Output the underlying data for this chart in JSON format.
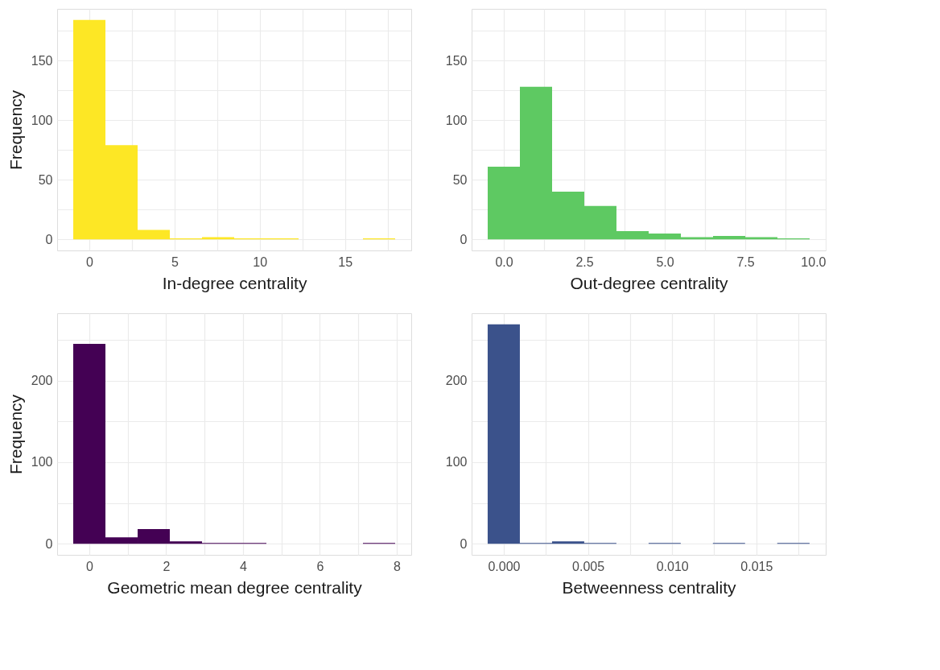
{
  "chart_data": [
    {
      "type": "histogram",
      "color": "#fde725",
      "xlabel": "In-degree centrality",
      "ylabel": "Frequency",
      "grid": true,
      "bins": [
        -0.944,
        0.944,
        2.833,
        4.722,
        6.611,
        8.5,
        10.389,
        12.278,
        14.167,
        16.056,
        17.944
      ],
      "values": [
        184,
        79,
        8,
        1,
        2,
        1,
        1,
        0,
        0,
        1
      ],
      "xlim": [
        -1.89,
        18.89
      ],
      "xticks": [
        0,
        {
          "value": 2.5,
          "label": null
        },
        5,
        {
          "value": 7.5,
          "label": null
        },
        10,
        {
          "value": 12.5,
          "label": null
        },
        15,
        {
          "value": 17.5,
          "label": null
        }
      ],
      "ylim": [
        -9.2,
        193.2
      ],
      "yticks": [
        0,
        {
          "value": 25,
          "label": null
        },
        50,
        {
          "value": 75,
          "label": null
        },
        100,
        {
          "value": 125,
          "label": null
        },
        150,
        {
          "value": 175,
          "label": null
        }
      ]
    },
    {
      "type": "histogram",
      "color": "#5ec962",
      "xlabel": "Out-degree centrality",
      "grid": true,
      "bins": [
        -0.5,
        0.5,
        1.5,
        2.5,
        3.5,
        4.5,
        5.5,
        6.5,
        7.5,
        8.5,
        9.5
      ],
      "values": [
        61,
        128,
        40,
        28,
        7,
        5,
        2,
        3,
        2,
        1
      ],
      "xlim": [
        -1,
        10
      ],
      "xticks": [
        {
          "value": 0,
          "label": "0.0"
        },
        {
          "value": 1.25,
          "label": null
        },
        2.5,
        {
          "value": 3.75,
          "label": null
        },
        {
          "value": 5,
          "label": "5.0"
        },
        {
          "value": 6.25,
          "label": null
        },
        7.5,
        {
          "value": 8.75,
          "label": null
        },
        {
          "value": 10,
          "label": "10.0"
        }
      ],
      "ylim": [
        -9.2,
        193.2
      ],
      "yticks": [
        0,
        {
          "value": 25,
          "label": null
        },
        50,
        {
          "value": 75,
          "label": null
        },
        100,
        {
          "value": 125,
          "label": null
        },
        150,
        {
          "value": 175,
          "label": null
        }
      ]
    },
    {
      "type": "histogram",
      "color": "#440154",
      "xlabel": "Geometric mean degree centrality",
      "ylabel": "Frequency",
      "grid": true,
      "bins": [
        -0.419,
        0.419,
        1.257,
        2.094,
        2.932,
        3.77,
        4.608,
        5.446,
        6.283,
        7.121,
        7.959
      ],
      "values": [
        245,
        8,
        18,
        3,
        1,
        1,
        0,
        0,
        0,
        1
      ],
      "xlim": [
        -0.838,
        8.378
      ],
      "xticks": [
        0,
        {
          "value": 1,
          "label": null
        },
        2,
        {
          "value": 3,
          "label": null
        },
        4,
        {
          "value": 5,
          "label": null
        },
        6,
        {
          "value": 7,
          "label": null
        },
        8
      ],
      "ylim": [
        -13.45,
        282.45
      ],
      "yticks": [
        0,
        {
          "value": 50,
          "label": null
        },
        100,
        {
          "value": 150,
          "label": null
        },
        200,
        {
          "value": 250,
          "label": null
        }
      ]
    },
    {
      "type": "histogram",
      "color": "#3b528b",
      "xlabel": "Betweenness centrality",
      "grid": true,
      "bins": [
        -0.000956,
        0.000956,
        0.002867,
        0.004778,
        0.006689,
        0.0086,
        0.01051,
        0.01242,
        0.01433,
        0.01624,
        0.01816
      ],
      "values": [
        269,
        1,
        3,
        1,
        0,
        1,
        0,
        1,
        0,
        1
      ],
      "xlim": [
        -0.00191,
        0.01912
      ],
      "xticks": [
        {
          "value": 0,
          "label": "0.000"
        },
        {
          "value": 0.0025,
          "label": null
        },
        0.005,
        {
          "value": 0.0075,
          "label": null
        },
        {
          "value": 0.01,
          "label": "0.010"
        },
        {
          "value": 0.0125,
          "label": null
        },
        0.015,
        {
          "value": 0.0175,
          "label": null
        }
      ],
      "ylim": [
        -13.45,
        282.45
      ],
      "yticks": [
        0,
        {
          "value": 50,
          "label": null
        },
        100,
        {
          "value": 150,
          "label": null
        },
        200,
        {
          "value": 250,
          "label": null
        }
      ]
    }
  ]
}
